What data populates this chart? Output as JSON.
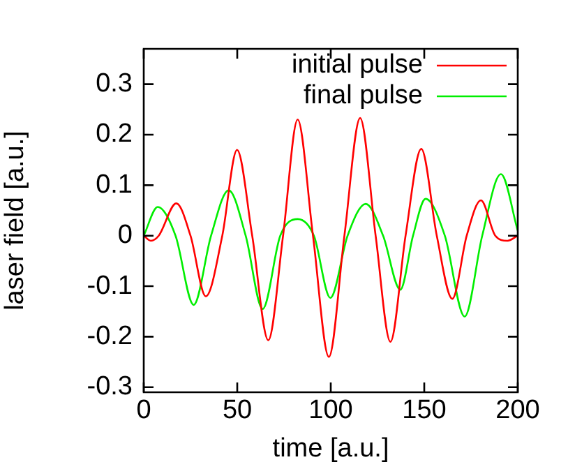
{
  "chart_data": {
    "type": "line",
    "xlabel": "time [a.u.]",
    "ylabel": "laser field [a.u.]",
    "xlim": [
      0,
      200
    ],
    "xticks": [
      0,
      50,
      100,
      150,
      200
    ],
    "ylim": [
      -0.31,
      0.37
    ],
    "yticks": [
      -0.3,
      -0.2,
      -0.1,
      0,
      0.1,
      0.2,
      0.3
    ],
    "grid": false,
    "legend": "top right",
    "marker": "none",
    "line_style": "solid",
    "series": [
      {
        "name": "initial pulse",
        "color": "#ff0000",
        "x": [
          0,
          3.8,
          8,
          17.4,
          25,
          33.2,
          42,
          49.9,
          58,
          66.6,
          74.5,
          82.3,
          90.5,
          99,
          107.3,
          115.7,
          124,
          131.9,
          140,
          148.4,
          156.7,
          165,
          172.7,
          180.3,
          188,
          194.5,
          200
        ],
        "values": [
          0,
          -0.01,
          0,
          0.064,
          0,
          -0.12,
          0,
          0.17,
          0,
          -0.207,
          0,
          0.23,
          0,
          -0.24,
          0,
          0.233,
          0,
          -0.21,
          0,
          0.172,
          0,
          -0.125,
          0,
          0.07,
          0,
          -0.01,
          0
        ]
      },
      {
        "name": "final pulse",
        "color": "#00ee00",
        "x": [
          0,
          7.5,
          17,
          26.7,
          36,
          45.4,
          54.5,
          63.6,
          73,
          82.3,
          91,
          99.8,
          109,
          118.7,
          128,
          137.2,
          144,
          150.7,
          161,
          171.6,
          181,
          191,
          200
        ],
        "values": [
          0,
          0.057,
          0,
          -0.137,
          0,
          0.09,
          0,
          -0.145,
          0,
          0.033,
          0,
          -0.123,
          0,
          0.063,
          0,
          -0.107,
          0,
          0.073,
          0,
          -0.16,
          0,
          0.122,
          0.01
        ]
      }
    ]
  }
}
